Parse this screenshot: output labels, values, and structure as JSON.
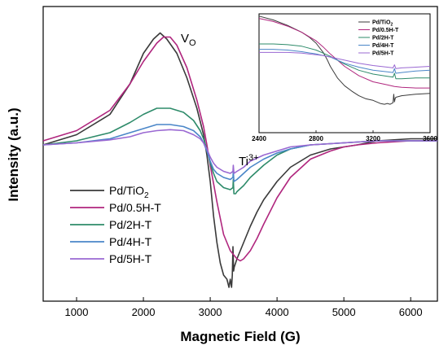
{
  "chart_data": {
    "type": "line",
    "title": "",
    "xlabel": "Magnetic Field (G)",
    "ylabel": "Intensity (a.u.)",
    "xlim": [
      500,
      6400
    ],
    "xticks": [
      "1000",
      "2000",
      "3000",
      "4000",
      "5000",
      "6000"
    ],
    "legend_position": "bottom-left",
    "annotations": [
      {
        "main": "V",
        "sub": "O",
        "x": 2450
      },
      {
        "main": "Ti",
        "sup": "3+",
        "x": 3450
      }
    ],
    "series": [
      {
        "name": "Pd/TiO",
        "name_sub": "2",
        "color": "#3a3a3a",
        "x": [
          500,
          1000,
          1500,
          1800,
          2000,
          2150,
          2250,
          2350,
          2500,
          2650,
          2800,
          2900,
          2950,
          3000,
          3050,
          3100,
          3150,
          3200,
          3250,
          3280,
          3300,
          3320,
          3330,
          3340,
          3345,
          3350,
          3360,
          3380,
          3400,
          3450,
          3500,
          3600,
          3700,
          3800,
          4000,
          4200,
          4500,
          4800,
          5000,
          5200,
          5500,
          6000,
          6400
        ],
        "y": [
          0.0,
          0.05,
          0.15,
          0.3,
          0.45,
          0.52,
          0.55,
          0.52,
          0.45,
          0.33,
          0.18,
          0.05,
          -0.05,
          -0.18,
          -0.35,
          -0.48,
          -0.58,
          -0.64,
          -0.66,
          -0.7,
          -0.66,
          -0.7,
          -0.64,
          -0.5,
          -0.56,
          -0.62,
          -0.6,
          -0.58,
          -0.56,
          -0.52,
          -0.48,
          -0.4,
          -0.33,
          -0.27,
          -0.18,
          -0.11,
          -0.05,
          -0.02,
          -0.01,
          0.0,
          0.02,
          0.03,
          0.03
        ]
      },
      {
        "name": "Pd/0.5H-T",
        "color": "#b0267e",
        "x": [
          500,
          1000,
          1500,
          1800,
          2000,
          2200,
          2300,
          2400,
          2500,
          2650,
          2800,
          2900,
          2950,
          3000,
          3100,
          3200,
          3300,
          3350,
          3400,
          3450,
          3500,
          3600,
          3700,
          3800,
          4000,
          4200,
          4500,
          4800,
          5000,
          5200,
          5500,
          6000,
          6400
        ],
        "y": [
          0.02,
          0.07,
          0.17,
          0.3,
          0.41,
          0.5,
          0.53,
          0.53,
          0.49,
          0.38,
          0.22,
          0.09,
          0.0,
          -0.1,
          -0.28,
          -0.44,
          -0.52,
          -0.54,
          -0.56,
          -0.57,
          -0.56,
          -0.52,
          -0.46,
          -0.39,
          -0.26,
          -0.16,
          -0.07,
          -0.03,
          -0.01,
          0.0,
          0.01,
          0.02,
          0.02
        ]
      },
      {
        "name": "Pd/2H-T",
        "color": "#2e8b6a",
        "x": [
          500,
          1000,
          1500,
          1800,
          2000,
          2200,
          2400,
          2600,
          2750,
          2850,
          2900,
          2950,
          3000,
          3050,
          3100,
          3200,
          3300,
          3340,
          3345,
          3355,
          3380,
          3400,
          3500,
          3600,
          3800,
          4000,
          4200,
          4500,
          5000,
          5500,
          6000,
          6400
        ],
        "y": [
          0.0,
          0.02,
          0.06,
          0.11,
          0.15,
          0.18,
          0.18,
          0.16,
          0.12,
          0.07,
          0.03,
          -0.02,
          -0.09,
          -0.14,
          -0.18,
          -0.21,
          -0.22,
          -0.21,
          -0.17,
          -0.24,
          -0.24,
          -0.23,
          -0.2,
          -0.16,
          -0.1,
          -0.05,
          -0.02,
          0.0,
          0.01,
          0.02,
          0.02,
          0.02
        ]
      },
      {
        "name": "Pd/4H-T",
        "color": "#4a86c8",
        "x": [
          500,
          1000,
          1500,
          1800,
          2000,
          2200,
          2400,
          2600,
          2750,
          2850,
          2900,
          2950,
          3000,
          3050,
          3100,
          3200,
          3300,
          3340,
          3345,
          3355,
          3400,
          3500,
          3600,
          3800,
          4000,
          4200,
          4500,
          5000,
          5500,
          6000,
          6400
        ],
        "y": [
          0.0,
          0.01,
          0.03,
          0.06,
          0.08,
          0.1,
          0.1,
          0.09,
          0.07,
          0.04,
          0.01,
          -0.03,
          -0.08,
          -0.12,
          -0.14,
          -0.16,
          -0.17,
          -0.16,
          -0.13,
          -0.18,
          -0.17,
          -0.14,
          -0.11,
          -0.07,
          -0.04,
          -0.02,
          0.0,
          0.01,
          0.02,
          0.02,
          0.02
        ]
      },
      {
        "name": "Pd/5H-T",
        "color": "#9a68d2",
        "x": [
          500,
          1000,
          1500,
          1800,
          2000,
          2200,
          2400,
          2600,
          2750,
          2850,
          2900,
          2950,
          3000,
          3050,
          3100,
          3200,
          3300,
          3340,
          3345,
          3355,
          3400,
          3500,
          3600,
          3800,
          4000,
          4200,
          4500,
          5000,
          5500,
          6000,
          6400
        ],
        "y": [
          0.0,
          0.01,
          0.025,
          0.04,
          0.06,
          0.07,
          0.075,
          0.07,
          0.05,
          0.03,
          0.01,
          -0.02,
          -0.06,
          -0.09,
          -0.11,
          -0.13,
          -0.14,
          -0.13,
          -0.1,
          -0.14,
          -0.13,
          -0.11,
          -0.08,
          -0.05,
          -0.03,
          -0.01,
          0.0,
          0.01,
          0.02,
          0.02,
          0.02
        ]
      }
    ],
    "inset": {
      "xlim": [
        2400,
        3600
      ],
      "xticks": [
        "2400",
        "2800",
        "3200",
        "3600"
      ],
      "legend_position": "top-right",
      "series": [
        {
          "name": "Pd/TiO",
          "name_sub": "2",
          "color": "#3a3a3a",
          "x": [
            2400,
            2500,
            2600,
            2700,
            2750,
            2800,
            2850,
            2880,
            2900,
            2950,
            3000,
            3050,
            3100,
            3150,
            3200,
            3250,
            3280,
            3300,
            3320,
            3340,
            3345,
            3350,
            3355,
            3360,
            3400,
            3500,
            3600
          ],
          "y": [
            0.95,
            0.9,
            0.83,
            0.74,
            0.68,
            0.6,
            0.48,
            0.38,
            0.3,
            0.15,
            0.05,
            -0.02,
            -0.08,
            -0.12,
            -0.14,
            -0.18,
            -0.19,
            -0.18,
            -0.19,
            -0.17,
            -0.06,
            -0.16,
            -0.12,
            -0.1,
            -0.08,
            -0.06,
            -0.05
          ]
        },
        {
          "name": "Pd/0.5H-T",
          "color": "#b0267e",
          "x": [
            2400,
            2500,
            2600,
            2700,
            2800,
            2850,
            2900,
            2950,
            3000,
            3100,
            3200,
            3300,
            3350,
            3400,
            3500,
            3600
          ],
          "y": [
            0.92,
            0.88,
            0.82,
            0.74,
            0.63,
            0.55,
            0.46,
            0.38,
            0.3,
            0.18,
            0.1,
            0.06,
            0.04,
            0.03,
            0.02,
            0.02
          ]
        },
        {
          "name": "Pd/2H-T",
          "color": "#2e8b6a",
          "x": [
            2400,
            2500,
            2600,
            2700,
            2800,
            2850,
            2900,
            2950,
            3000,
            3100,
            3200,
            3300,
            3340,
            3350,
            3360,
            3400,
            3500,
            3600
          ],
          "y": [
            0.59,
            0.59,
            0.58,
            0.56,
            0.51,
            0.47,
            0.43,
            0.38,
            0.33,
            0.25,
            0.2,
            0.17,
            0.16,
            0.21,
            0.14,
            0.14,
            0.15,
            0.15
          ]
        },
        {
          "name": "Pd/4H-T",
          "color": "#4a86c8",
          "x": [
            2400,
            2500,
            2600,
            2700,
            2800,
            2850,
            2900,
            2950,
            3000,
            3100,
            3200,
            3300,
            3340,
            3350,
            3360,
            3400,
            3500,
            3600
          ],
          "y": [
            0.52,
            0.52,
            0.51,
            0.49,
            0.46,
            0.44,
            0.42,
            0.38,
            0.34,
            0.29,
            0.25,
            0.23,
            0.22,
            0.27,
            0.21,
            0.22,
            0.24,
            0.25
          ]
        },
        {
          "name": "Pd/5H-T",
          "color": "#9a68d2",
          "x": [
            2400,
            2500,
            2600,
            2700,
            2800,
            2850,
            2900,
            2950,
            3000,
            3100,
            3200,
            3300,
            3340,
            3350,
            3360,
            3400,
            3500,
            3600
          ],
          "y": [
            0.48,
            0.48,
            0.48,
            0.47,
            0.45,
            0.44,
            0.42,
            0.4,
            0.38,
            0.34,
            0.31,
            0.29,
            0.28,
            0.32,
            0.27,
            0.28,
            0.29,
            0.3
          ]
        }
      ]
    }
  }
}
